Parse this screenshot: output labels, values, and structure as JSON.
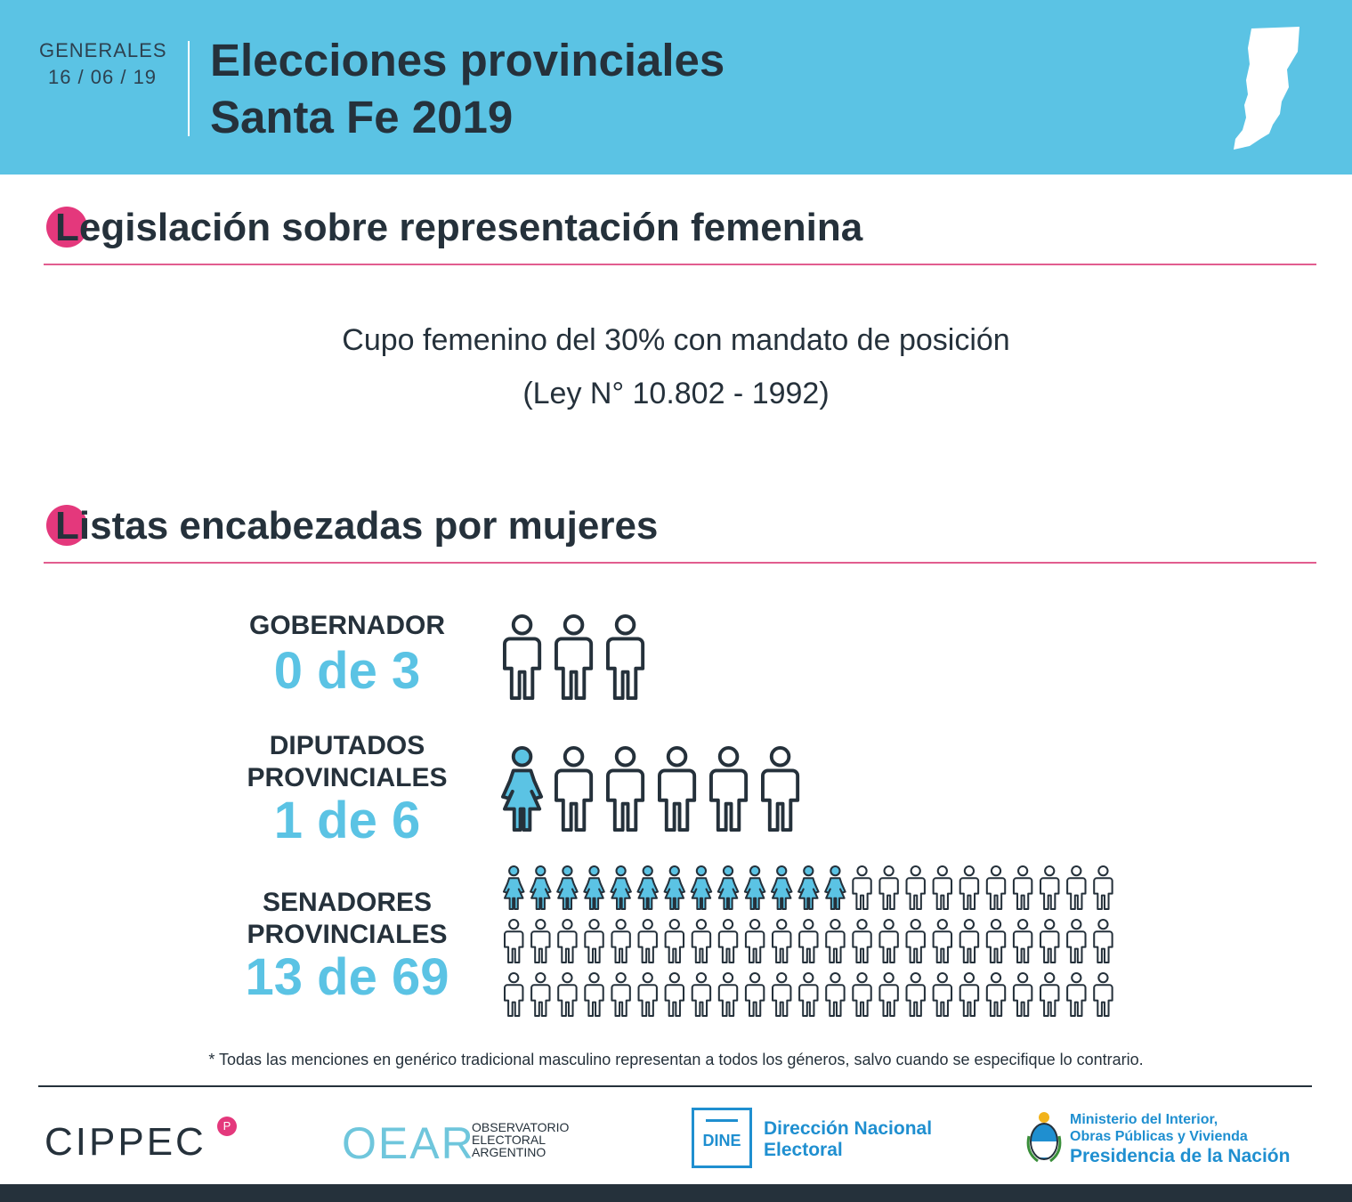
{
  "header": {
    "kicker": "GENERALES",
    "date": "16 / 06 / 19",
    "title_line1": "Elecciones provinciales",
    "title_line2": "Santa Fe 2019",
    "map_icon": "santa-fe-map-icon"
  },
  "section1": {
    "title": "Legislación sobre representación femenina",
    "text_line1": "Cupo femenino del 30% con mandato de posición",
    "text_line2": "(Ley N° 10.802 - 1992)"
  },
  "section2": {
    "title": "Listas encabezadas por mujeres",
    "rows": [
      {
        "label_line1": "GOBERNADOR",
        "label_line2": "",
        "count": "0 de 3",
        "women": 0,
        "total": 3
      },
      {
        "label_line1": "DIPUTADOS",
        "label_line2": "PROVINCIALES",
        "count": "1 de 6",
        "women": 1,
        "total": 6
      },
      {
        "label_line1": "SENADORES",
        "label_line2": "PROVINCIALES",
        "count": "13 de 69",
        "women": 13,
        "total": 69
      }
    ]
  },
  "footnote": "* Todas las menciones en genérico tradicional masculino representan a todos los géneros, salvo cuando se especifique lo contrario.",
  "footer": {
    "cippec": "CIPPEC",
    "oear_logo": "OEAR",
    "oear_line1": "OBSERVATORIO",
    "oear_line2": "ELECTORAL",
    "oear_line3": "ARGENTINO",
    "dine_logo": "DINE",
    "dine_line1": "Dirección Nacional",
    "dine_line2": "Electoral",
    "min_line1": "Ministerio del Interior,",
    "min_line2": "Obras Públicas y Vivienda",
    "min_line3": "Presidencia de la Nación"
  },
  "colors": {
    "header_bg": "#5bc3e4",
    "accent_pink": "#e4387c",
    "woman_blue": "#5bc3e4",
    "man_fill": "#ffffff",
    "dark_text": "#25313b",
    "gov_blue": "#1f8fd0"
  }
}
